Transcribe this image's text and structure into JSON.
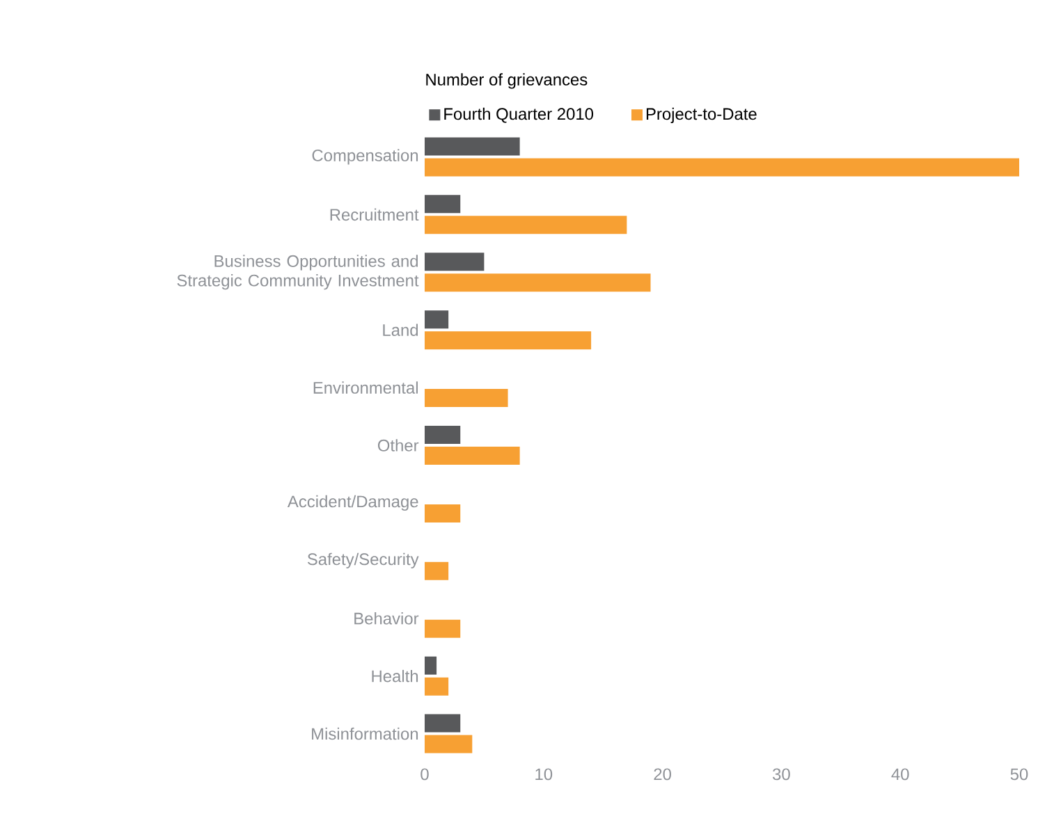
{
  "chart_data": {
    "type": "bar",
    "orientation": "horizontal",
    "legend_title": "Number of grievances",
    "legend": "top",
    "categories": [
      "Compensation",
      "Recruitment",
      "Business Opportunities and Strategic Community Investment",
      "Land",
      "Environmental",
      "Other",
      "Accident/Damage",
      "Safety/Security",
      "Behavior",
      "Health",
      "Misinformation"
    ],
    "series": [
      {
        "name": "Fourth Quarter 2010",
        "color": "#58595b",
        "values": [
          8,
          3,
          5,
          2,
          0,
          3,
          0,
          0,
          0,
          1,
          3
        ]
      },
      {
        "name": "Project-to-Date",
        "color": "#f7a033",
        "values": [
          50,
          17,
          19,
          14,
          7,
          8,
          3,
          2,
          3,
          2,
          4
        ]
      }
    ],
    "xlim": [
      0,
      50
    ],
    "xticks": [
      0,
      10,
      20,
      30,
      40,
      50
    ],
    "grid": false
  }
}
